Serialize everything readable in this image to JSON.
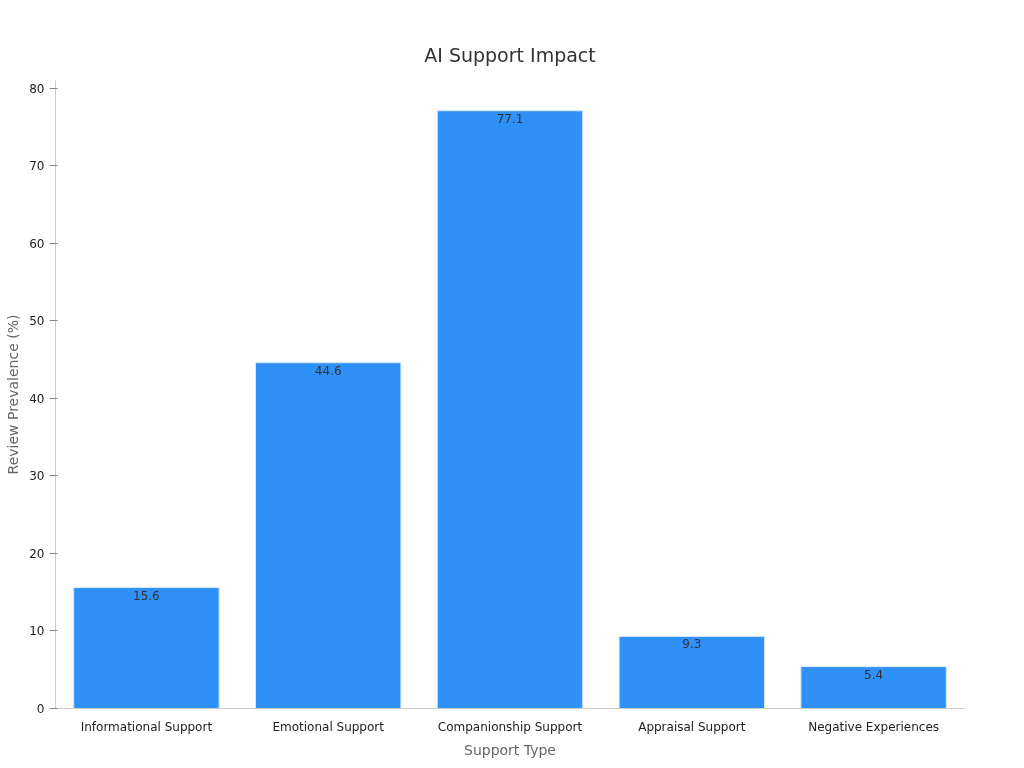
{
  "chart_data": {
    "type": "bar",
    "title": "AI Support Impact",
    "xlabel": "Support Type",
    "ylabel": "Review Prevalence (%)",
    "categories": [
      "Informational Support",
      "Emotional Support",
      "Companionship Support",
      "Appraisal Support",
      "Negative Experiences"
    ],
    "values": [
      15.6,
      44.6,
      77.1,
      9.3,
      5.4
    ],
    "color": "#2f91f8",
    "data_labels": true,
    "ylim": [
      0,
      81
    ],
    "yticks": [
      0,
      10,
      20,
      30,
      40,
      50,
      60,
      70,
      80
    ],
    "grid": false
  }
}
